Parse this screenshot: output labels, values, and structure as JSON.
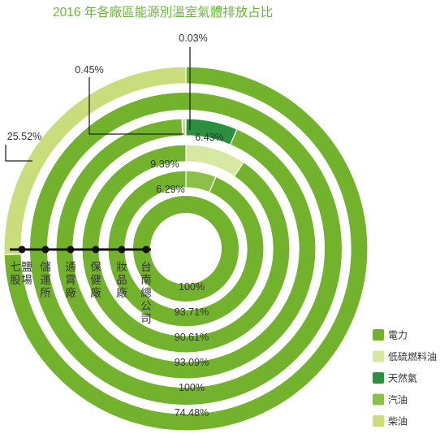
{
  "chart_data": {
    "type": "donut",
    "title": "2016 年各廠區能源別溫室氣體排放占比",
    "sources": [
      "電力",
      "低硫燃料油",
      "天然氣",
      "汽油",
      "柴油"
    ],
    "colors": {
      "電力": "#73b22d",
      "低硫燃料油": "#d7e8a2",
      "天然氣": "#2a8f3f",
      "汽油": "#8cc04a",
      "柴油": "#c9dd7d"
    },
    "rings": [
      {
        "site": "台南總公司",
        "values": {
          "電力": 100
        }
      },
      {
        "site": "妝品廠",
        "values": {
          "電力": 93.71,
          "汽油": 6.29
        }
      },
      {
        "site": "保健廠",
        "values": {
          "電力": 90.61,
          "低硫燃料油": 9.39
        }
      },
      {
        "site": "通霄廠",
        "values": {
          "電力": 93.09,
          "天然氣": 6.43,
          "柴油": 0.45,
          "汽油": 0.03
        }
      },
      {
        "site": "儲運所",
        "values": {
          "電力": 100
        }
      },
      {
        "site": "七股鹽場",
        "values": {
          "電力": 74.48,
          "柴油": 25.52
        }
      }
    ],
    "labels": {
      "power": [
        "100%",
        "93.71%",
        "90.61%",
        "93.09%",
        "100%",
        "74.48%"
      ],
      "inner": [
        "6.29%",
        "9.39%",
        "6.43%"
      ],
      "callouts": [
        "0.03%",
        "0.45%",
        "25.52%"
      ]
    }
  }
}
